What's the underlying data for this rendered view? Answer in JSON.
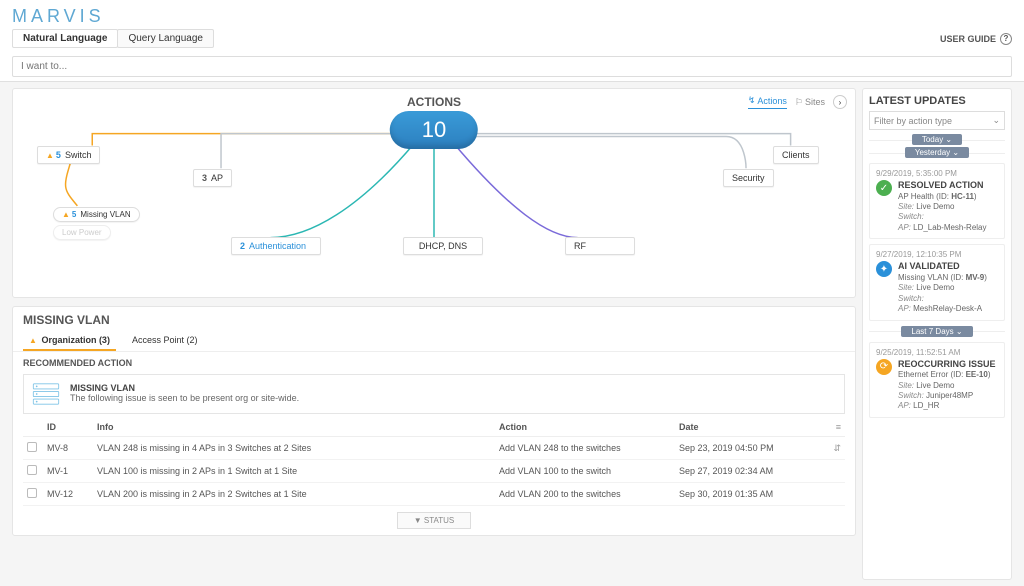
{
  "colors": {
    "accent": "#2a90d9",
    "warn": "#f5a623",
    "bg": "#f5f5f5",
    "icon_green": "#4caf50",
    "icon_blue": "#2a90d9",
    "icon_orange": "#f5a623",
    "line_orange": "#f5a623",
    "line_teal": "#2bb7b3",
    "line_purple": "#7a6ad9",
    "line_grey": "#bfc6cd"
  },
  "header": {
    "logo": "MARVIS",
    "tabs": {
      "natural": "Natural Language",
      "query": "Query Language"
    },
    "user_guide": "USER GUIDE",
    "search_placeholder": "I want to..."
  },
  "diagram": {
    "title": "ACTIONS",
    "center_value": "10",
    "toggle": {
      "actions": "Actions",
      "sites": "Sites"
    },
    "nodes": {
      "switch": {
        "count": "5",
        "label": "Switch",
        "warn": true
      },
      "ap": {
        "count": "3",
        "label": "AP"
      },
      "auth": {
        "count": "2",
        "label": "Authentication"
      },
      "dhcp": {
        "label": "DHCP, DNS"
      },
      "rf": {
        "label": "RF"
      },
      "clients": {
        "label": "Clients"
      },
      "security": {
        "label": "Security"
      },
      "sub_missing_vlan": {
        "count": "5",
        "label": "Missing VLAN"
      },
      "sub_low_power": {
        "label": "Low Power"
      }
    }
  },
  "panel": {
    "title": "MISSING VLAN",
    "tabs": {
      "org": "Organization (3)",
      "ap": "Access Point (2)"
    },
    "rec_label": "RECOMMENDED ACTION",
    "rec_title": "MISSING VLAN",
    "rec_desc": "The following issue is seen to be present org or site-wide.",
    "columns": {
      "id": "ID",
      "info": "Info",
      "action": "Action",
      "date": "Date"
    },
    "rows": [
      {
        "id": "MV-8",
        "info": "VLAN 248 is missing in 4 APs in 3 Switches at 2 Sites",
        "action": "Add VLAN 248 to the switches",
        "date": "Sep 23, 2019 04:50 PM"
      },
      {
        "id": "MV-1",
        "info": "VLAN 100 is missing in 2 APs in 1 Switch at 1 Site",
        "action": "Add VLAN 100 to the switch",
        "date": "Sep 27, 2019 02:34 AM"
      },
      {
        "id": "MV-12",
        "info": "VLAN 200 is missing in 2 APs in 2 Switches at 1 Site",
        "action": "Add VLAN 200 to the switches",
        "date": "Sep 30, 2019 01:35 AM"
      }
    ],
    "status_btn": "▼  STATUS"
  },
  "updates": {
    "title": "LATEST UPDATES",
    "filter_placeholder": "Filter by action type",
    "pills": {
      "today": "Today",
      "yesterday": "Yesterday",
      "last7": "Last 7 Days"
    },
    "items": [
      {
        "time": "9/29/2019, 5:35:00 PM",
        "icon_color": "#4caf50",
        "glyph": "✓",
        "title": "RESOLVED ACTION",
        "sub": "AP Health (ID: ",
        "sub_id": "HC-11",
        "site": "Live Demo",
        "switch": "",
        "ap": "LD_Lab-Mesh-Relay"
      },
      {
        "time": "9/27/2019, 12:10:35 PM",
        "icon_color": "#2a90d9",
        "glyph": "✦",
        "title": "AI VALIDATED",
        "sub": "Missing VLAN (ID: ",
        "sub_id": "MV-9",
        "site": "Live Demo",
        "switch": "",
        "ap": "MeshRelay-Desk-A"
      },
      {
        "time": "9/25/2019, 11:52:51 AM",
        "icon_color": "#f5a623",
        "glyph": "⟳",
        "title": "REOCCURRING ISSUE",
        "sub": "Ethernet Error (ID: ",
        "sub_id": "EE-10",
        "site": "Live Demo",
        "switch": "Juniper48MP",
        "ap": "LD_HR"
      }
    ]
  },
  "labels": {
    "site": "Site:",
    "switch": "Switch:",
    "ap": "AP:"
  }
}
